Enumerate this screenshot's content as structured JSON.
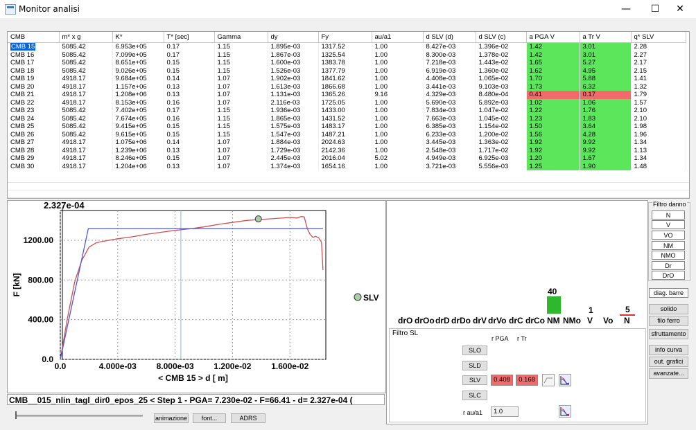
{
  "window": {
    "title": "Monitor analisi",
    "minimize": "—",
    "maximize": "☐",
    "close": "✕"
  },
  "table": {
    "columns": [
      "CMB",
      "m* x g",
      "K*",
      "T* [sec]",
      "Gamma",
      "dy",
      "Fy",
      "au/a1",
      "d SLV (d)",
      "d SLV (c)",
      "a PGA V",
      "a Tr V",
      "q* SLV"
    ],
    "rows": [
      [
        "CMB 15",
        "5085.42",
        "6.953e+05",
        "0.17",
        "1.15",
        "1.895e-03",
        "1317.52",
        "1.00",
        "8.427e-03",
        "1.396e-02",
        "1.42",
        "3.01",
        "2.28"
      ],
      [
        "CMB 16",
        "5085.42",
        "7.099e+05",
        "0.17",
        "1.15",
        "1.867e-03",
        "1325.54",
        "1.00",
        "8.300e-03",
        "1.378e-02",
        "1.42",
        "3.01",
        "2.27"
      ],
      [
        "CMB 17",
        "5085.42",
        "8.651e+05",
        "0.15",
        "1.15",
        "1.600e-03",
        "1383.78",
        "1.00",
        "7.218e-03",
        "1.443e-02",
        "1.65",
        "5.27",
        "2.17"
      ],
      [
        "CMB 18",
        "5085.42",
        "9.026e+05",
        "0.15",
        "1.15",
        "1.526e-03",
        "1377.79",
        "1.00",
        "6.919e-03",
        "1.360e-02",
        "1.62",
        "4.95",
        "2.15"
      ],
      [
        "CMB 19",
        "4918.17",
        "9.684e+05",
        "0.14",
        "1.07",
        "1.902e-03",
        "1841.62",
        "1.00",
        "4.408e-03",
        "1.065e-02",
        "1.70",
        "5.88",
        "1.41"
      ],
      [
        "CMB 20",
        "4918.17",
        "1.157e+06",
        "0.13",
        "1.07",
        "1.613e-03",
        "1866.68",
        "1.00",
        "3.441e-03",
        "9.103e-03",
        "1.73",
        "6.32",
        "1.32"
      ],
      [
        "CMB 21",
        "4918.17",
        "1.208e+06",
        "0.13",
        "1.07",
        "1.131e-03",
        "1365.26",
        "9.16",
        "4.329e-03",
        "8.480e-04",
        "0.41",
        "0.17",
        "1.79"
      ],
      [
        "CMB 22",
        "4918.17",
        "8.153e+05",
        "0.16",
        "1.07",
        "2.116e-03",
        "1725.05",
        "1.00",
        "5.690e-03",
        "5.892e-03",
        "1.02",
        "1.06",
        "1.57"
      ],
      [
        "CMB 23",
        "5085.42",
        "7.402e+05",
        "0.17",
        "1.15",
        "1.936e-03",
        "1433.00",
        "1.00",
        "7.834e-03",
        "1.047e-02",
        "1.22",
        "1.76",
        "2.10"
      ],
      [
        "CMB 24",
        "5085.42",
        "7.674e+05",
        "0.16",
        "1.15",
        "1.865e-03",
        "1431.52",
        "1.00",
        "7.663e-03",
        "1.045e-02",
        "1.23",
        "1.83",
        "2.10"
      ],
      [
        "CMB 25",
        "5085.42",
        "9.415e+05",
        "0.15",
        "1.15",
        "1.575e-03",
        "1483.17",
        "1.00",
        "6.385e-03",
        "1.154e-02",
        "1.50",
        "3.64",
        "1.98"
      ],
      [
        "CMB 26",
        "5085.42",
        "9.615e+05",
        "0.15",
        "1.15",
        "1.547e-03",
        "1487.21",
        "1.00",
        "6.233e-03",
        "1.200e-02",
        "1.56",
        "4.28",
        "1.96"
      ],
      [
        "CMB 27",
        "4918.17",
        "1.075e+06",
        "0.14",
        "1.07",
        "1.884e-03",
        "2024.63",
        "1.00",
        "3.445e-03",
        "1.363e-02",
        "1.92",
        "9.92",
        "1.34"
      ],
      [
        "CMB 28",
        "4918.17",
        "1.239e+06",
        "0.13",
        "1.07",
        "1.729e-03",
        "2142.36",
        "1.00",
        "2.548e-03",
        "1.717e-02",
        "1.92",
        "9.92",
        "1.13"
      ],
      [
        "CMB 29",
        "4918.17",
        "8.246e+05",
        "0.15",
        "1.07",
        "2.445e-03",
        "2016.04",
        "5.02",
        "4.949e-03",
        "6.925e-03",
        "1.20",
        "1.67",
        "1.34"
      ],
      [
        "CMB 30",
        "4918.17",
        "1.204e+06",
        "0.13",
        "1.07",
        "1.374e-03",
        "1654.16",
        "1.00",
        "3.721e-03",
        "5.556e-03",
        "1.25",
        "1.90",
        "1.48"
      ]
    ]
  },
  "chart_data": {
    "type": "line",
    "title": "2.327e-04",
    "xlabel": "< CMB 15 >  d [  m]",
    "ylabel": "F [kN]",
    "xlim": [
      0,
      0.0185
    ],
    "ylim": [
      0,
      1500
    ],
    "x_ticks": [
      "0.0",
      "4.000e-03",
      "8.000e-03",
      "1.200e-02",
      "1.600e-02"
    ],
    "y_ticks": [
      "0.0",
      "400.00",
      "800.00",
      "1200.00"
    ],
    "series": [
      {
        "color": "#d05050",
        "points": [
          [
            0,
            0
          ],
          [
            0.0005,
            420
          ],
          [
            0.001,
            780
          ],
          [
            0.0015,
            1000
          ],
          [
            0.002,
            1130
          ],
          [
            0.0025,
            1175
          ],
          [
            0.003,
            1190
          ],
          [
            0.004,
            1215
          ],
          [
            0.005,
            1235
          ],
          [
            0.006,
            1260
          ],
          [
            0.007,
            1280
          ],
          [
            0.008,
            1300
          ],
          [
            0.009,
            1315
          ],
          [
            0.01,
            1335
          ],
          [
            0.011,
            1360
          ],
          [
            0.012,
            1380
          ],
          [
            0.013,
            1400
          ],
          [
            0.014,
            1410
          ],
          [
            0.015,
            1420
          ],
          [
            0.016,
            1430
          ],
          [
            0.0165,
            1425
          ],
          [
            0.0168,
            1440
          ],
          [
            0.017,
            1435
          ],
          [
            0.0172,
            1320
          ],
          [
            0.0174,
            1260
          ],
          [
            0.0176,
            1230
          ],
          [
            0.0178,
            1240
          ],
          [
            0.018,
            1225
          ],
          [
            0.0182,
            1180
          ],
          [
            0.0183,
            900
          ]
        ]
      },
      {
        "color": "#4a5ae0",
        "points": [
          [
            0,
            0
          ],
          [
            0.00195,
            1318
          ],
          [
            0.0183,
            1318
          ]
        ]
      }
    ],
    "markers": [
      {
        "x": 0.0138,
        "y": 1415,
        "label": "SLV"
      },
      {
        "x": 0.0084,
        "vline": true
      }
    ],
    "legend": {
      "label": "SLV",
      "position": "right"
    }
  },
  "status_line": "CMB__015_nlin_tagl_dir0_epos_25    < Step 1 - PGA= 7.230e-02 - F=66.41 - d= 2.327e-04  (",
  "bottom_buttons": {
    "animazione": "animazione",
    "font": "font...",
    "adrs": "ADRS"
  },
  "bars": {
    "labels": [
      "drO",
      "drOo",
      "drD",
      "drDo",
      "drV",
      "drVo",
      "drC",
      "drCo",
      "NM",
      "NMo",
      "V",
      "Vo",
      "N"
    ],
    "values": {
      "NM": 40,
      "V": 1,
      "N": 5
    },
    "colors": {
      "NM": "#2eb82e",
      "N": "#e03030"
    }
  },
  "filtro_sl": {
    "title": "Filtro SL",
    "col_pga": "r PGA",
    "col_tr": "r Tr",
    "buttons": [
      "SLO",
      "SLD",
      "SLV",
      "SLC"
    ],
    "slv_pga": "0.408",
    "slv_tr": "0.168",
    "r_au_label": "r au/a1",
    "r_au_value": "1.0"
  },
  "filtro_danno": {
    "title": "Filtro danno",
    "items": [
      "N",
      "V",
      "VO",
      "NM",
      "NMO",
      "Dr",
      "DrO"
    ]
  },
  "right_buttons": {
    "diag": "diag. barre",
    "solido": "solido",
    "filo": "filo ferro",
    "sfrutt": "sfruttamento",
    "info": "info curva",
    "out": "out. grafici",
    "avanz": "avanzate..."
  }
}
